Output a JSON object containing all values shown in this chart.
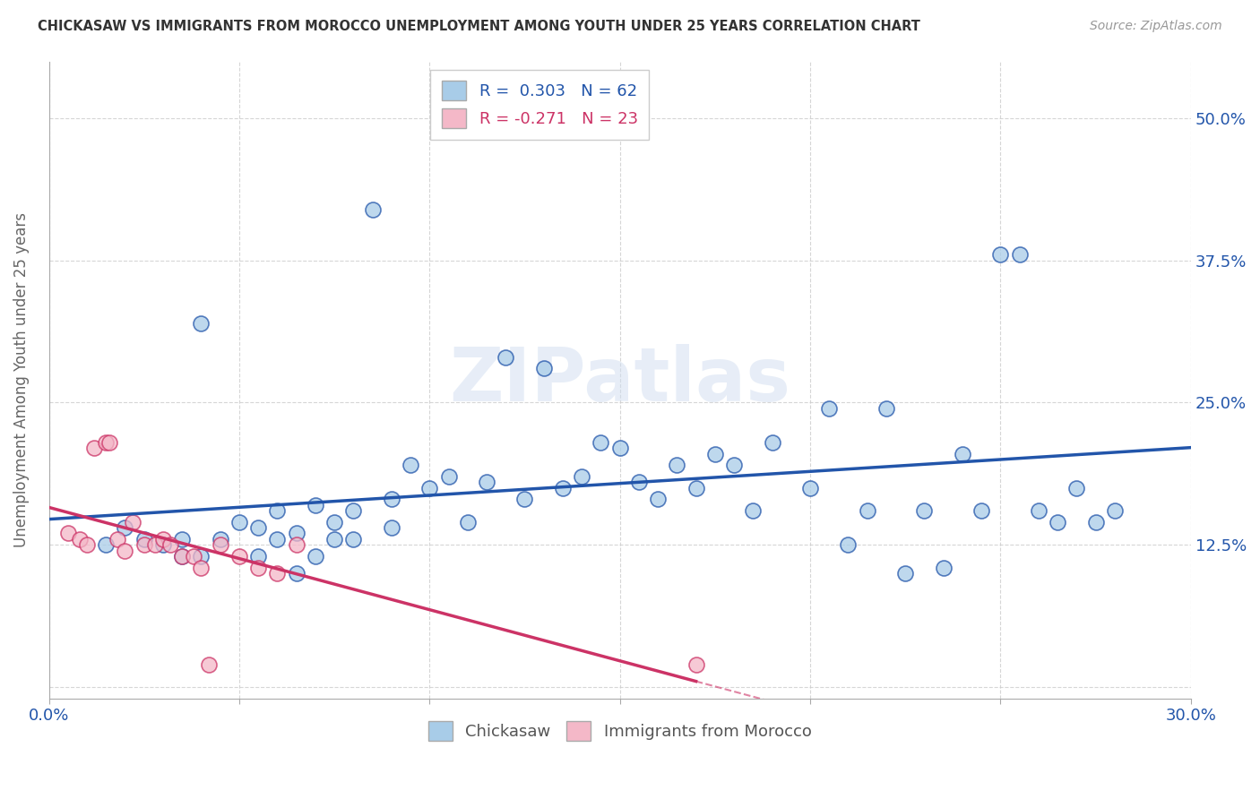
{
  "title": "CHICKASAW VS IMMIGRANTS FROM MOROCCO UNEMPLOYMENT AMONG YOUTH UNDER 25 YEARS CORRELATION CHART",
  "source": "Source: ZipAtlas.com",
  "ylabel": "Unemployment Among Youth under 25 years",
  "x_ticks": [
    0.0,
    0.05,
    0.1,
    0.15,
    0.2,
    0.25,
    0.3
  ],
  "x_tick_labels": [
    "0.0%",
    "",
    "",
    "",
    "",
    "",
    "30.0%"
  ],
  "y_ticks": [
    0.0,
    0.125,
    0.25,
    0.375,
    0.5
  ],
  "y_tick_labels": [
    "",
    "12.5%",
    "25.0%",
    "37.5%",
    "50.0%"
  ],
  "xlim": [
    0.0,
    0.3
  ],
  "ylim": [
    -0.01,
    0.55
  ],
  "legend_labels": [
    "Chickasaw",
    "Immigrants from Morocco"
  ],
  "R_chickasaw": 0.303,
  "N_chickasaw": 62,
  "R_morocco": -0.271,
  "N_morocco": 23,
  "color_chickasaw": "#a8cce8",
  "color_morocco": "#f4b8c8",
  "color_line_chickasaw": "#2255aa",
  "color_line_morocco": "#cc3366",
  "chickasaw_x": [
    0.015,
    0.02,
    0.025,
    0.03,
    0.035,
    0.035,
    0.04,
    0.04,
    0.045,
    0.05,
    0.055,
    0.055,
    0.06,
    0.06,
    0.065,
    0.065,
    0.07,
    0.07,
    0.075,
    0.075,
    0.08,
    0.08,
    0.085,
    0.09,
    0.09,
    0.095,
    0.1,
    0.105,
    0.11,
    0.115,
    0.12,
    0.125,
    0.13,
    0.135,
    0.14,
    0.145,
    0.15,
    0.155,
    0.16,
    0.165,
    0.17,
    0.175,
    0.18,
    0.185,
    0.19,
    0.2,
    0.205,
    0.21,
    0.215,
    0.22,
    0.225,
    0.23,
    0.235,
    0.24,
    0.245,
    0.25,
    0.255,
    0.26,
    0.265,
    0.27,
    0.275,
    0.28
  ],
  "chickasaw_y": [
    0.125,
    0.14,
    0.13,
    0.125,
    0.13,
    0.115,
    0.32,
    0.115,
    0.13,
    0.145,
    0.14,
    0.115,
    0.155,
    0.13,
    0.1,
    0.135,
    0.16,
    0.115,
    0.145,
    0.13,
    0.155,
    0.13,
    0.42,
    0.165,
    0.14,
    0.195,
    0.175,
    0.185,
    0.145,
    0.18,
    0.29,
    0.165,
    0.28,
    0.175,
    0.185,
    0.215,
    0.21,
    0.18,
    0.165,
    0.195,
    0.175,
    0.205,
    0.195,
    0.155,
    0.215,
    0.175,
    0.245,
    0.125,
    0.155,
    0.245,
    0.1,
    0.155,
    0.105,
    0.205,
    0.155,
    0.38,
    0.38,
    0.155,
    0.145,
    0.175,
    0.145,
    0.155
  ],
  "morocco_x": [
    0.005,
    0.008,
    0.01,
    0.012,
    0.015,
    0.016,
    0.018,
    0.02,
    0.022,
    0.025,
    0.028,
    0.03,
    0.032,
    0.035,
    0.038,
    0.04,
    0.042,
    0.045,
    0.05,
    0.055,
    0.06,
    0.065,
    0.17
  ],
  "morocco_y": [
    0.135,
    0.13,
    0.125,
    0.21,
    0.215,
    0.215,
    0.13,
    0.12,
    0.145,
    0.125,
    0.125,
    0.13,
    0.125,
    0.115,
    0.115,
    0.105,
    0.02,
    0.125,
    0.115,
    0.105,
    0.1,
    0.125,
    0.02
  ],
  "watermark": "ZIPatlas",
  "background_color": "#FFFFFF",
  "grid_color": "#CCCCCC"
}
